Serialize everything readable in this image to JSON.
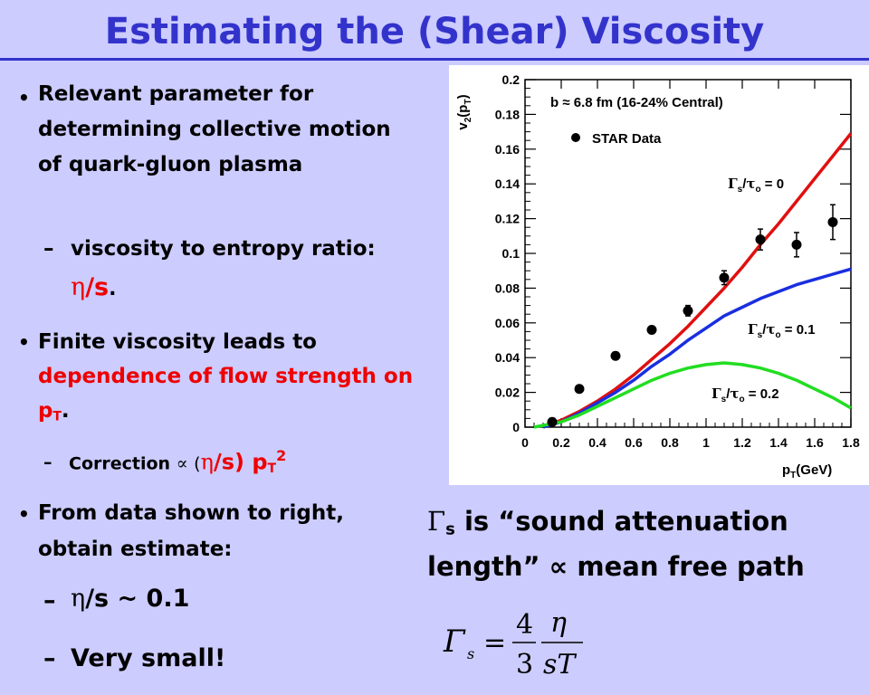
{
  "title": "Estimating the (Shear) Viscosity",
  "bullets": {
    "b1": "Relevant parameter for determining collective motion of quark-gluon plasma",
    "b1_sub_text": "viscosity to entropy ratio:",
    "b1_sub_eta": "η",
    "b1_sub_s": "/s",
    "b1_sub_end": ".",
    "b2_pre": "Finite viscosity leads to",
    "b2_red": "dependence of flow strength on p",
    "b2_red_sub": "T",
    "b2_end": ".",
    "b2_sub_text": "Correction",
    "b2_sub_prop": "∝",
    "b2_sub_open": "(",
    "b2_sub_eta": "η",
    "b2_sub_rest": "/s) p",
    "b2_sub_T": "T",
    "b2_sub_exp": "2",
    "b3": "From data shown to right, obtain estimate:",
    "b3_sub1_eta": "η",
    "b3_sub1_rest": "/s ~ 0.1",
    "b3_sub2": "Very small!"
  },
  "right_text": {
    "gamma": "Γ",
    "gamma_sub": "s",
    "line1_rest": " is “sound attenuation",
    "line2": "length” ∝ mean free path"
  },
  "formula": {
    "lhs": "Γ",
    "lhs_sub": "s",
    "eq": "=",
    "num": "4",
    "den": "3",
    "num2": "η",
    "den2": "sT"
  },
  "chart_data": {
    "type": "line",
    "ylabel": "v2(pT)",
    "ylabel_main": "v",
    "ylabel_sub": "2",
    "ylabel_open": "(p",
    "ylabel_sub2": "T",
    "ylabel_close": ")",
    "xlabel": "pT(GeV)",
    "xlabel_main": "p",
    "xlabel_sub": "T",
    "xlabel_rest": "(GeV)",
    "xlim": [
      0,
      1.8
    ],
    "ylim": [
      0,
      0.2
    ],
    "x_ticks": [
      "0",
      "0.2",
      "0.4",
      "0.6",
      "0.8",
      "1",
      "1.2",
      "1.4",
      "1.6",
      "1.8"
    ],
    "y_ticks": [
      "0",
      "0.02",
      "0.04",
      "0.06",
      "0.08",
      "0.1",
      "0.12",
      "0.14",
      "0.16",
      "0.18",
      "0.2"
    ],
    "annotation_b": "b ≈ 6.8 fm (16-24% Central)",
    "legend_label": "STAR Data",
    "series": [
      {
        "name": "STAR Data",
        "kind": "points",
        "color": "#000000",
        "x": [
          0.15,
          0.3,
          0.5,
          0.7,
          0.9,
          1.1,
          1.3,
          1.5,
          1.7
        ],
        "y": [
          0.003,
          0.022,
          0.041,
          0.056,
          0.067,
          0.086,
          0.108,
          0.105,
          0.118
        ],
        "err": [
          0.002,
          0.002,
          0.002,
          0.002,
          0.003,
          0.004,
          0.006,
          0.007,
          0.01
        ]
      },
      {
        "name": "Γs/τ0 = 0",
        "kind": "line",
        "color": "#e01010",
        "x": [
          0.1,
          0.2,
          0.3,
          0.4,
          0.5,
          0.6,
          0.7,
          0.8,
          0.9,
          1.0,
          1.1,
          1.2,
          1.3,
          1.4,
          1.5,
          1.6,
          1.7,
          1.8
        ],
        "y": [
          0.0,
          0.004,
          0.009,
          0.015,
          0.022,
          0.03,
          0.039,
          0.048,
          0.058,
          0.069,
          0.08,
          0.092,
          0.105,
          0.117,
          0.13,
          0.143,
          0.156,
          0.169
        ]
      },
      {
        "name": "Γs/τ0 = 0.1",
        "kind": "line",
        "color": "#1a2ee0",
        "x": [
          0.1,
          0.2,
          0.3,
          0.4,
          0.5,
          0.6,
          0.7,
          0.8,
          0.9,
          1.0,
          1.1,
          1.2,
          1.3,
          1.4,
          1.5,
          1.6,
          1.7,
          1.8
        ],
        "y": [
          0.0,
          0.003,
          0.008,
          0.014,
          0.02,
          0.027,
          0.035,
          0.042,
          0.05,
          0.057,
          0.064,
          0.069,
          0.074,
          0.078,
          0.082,
          0.085,
          0.088,
          0.091
        ]
      },
      {
        "name": "Γs/τ0 = 0.2",
        "kind": "line",
        "color": "#22dd22",
        "x": [
          0.05,
          0.2,
          0.3,
          0.4,
          0.5,
          0.6,
          0.7,
          0.8,
          0.9,
          1.0,
          1.1,
          1.2,
          1.3,
          1.4,
          1.5,
          1.6,
          1.7,
          1.8
        ],
        "y": [
          0.0,
          0.003,
          0.007,
          0.012,
          0.017,
          0.022,
          0.027,
          0.031,
          0.034,
          0.036,
          0.037,
          0.036,
          0.034,
          0.031,
          0.027,
          0.022,
          0.017,
          0.011
        ]
      }
    ],
    "curve_labels": [
      {
        "gamma": "Γ",
        "sub": "s",
        "slash": "/",
        "tau": "τ",
        "tsub": "o",
        "value": " = 0"
      },
      {
        "gamma": "Γ",
        "sub": "s",
        "slash": "/",
        "tau": "τ",
        "tsub": "o",
        "value": " = 0.1"
      },
      {
        "gamma": "Γ",
        "sub": "s",
        "slash": "/",
        "tau": "τ",
        "tsub": "o",
        "value": " = 0.2"
      }
    ]
  }
}
